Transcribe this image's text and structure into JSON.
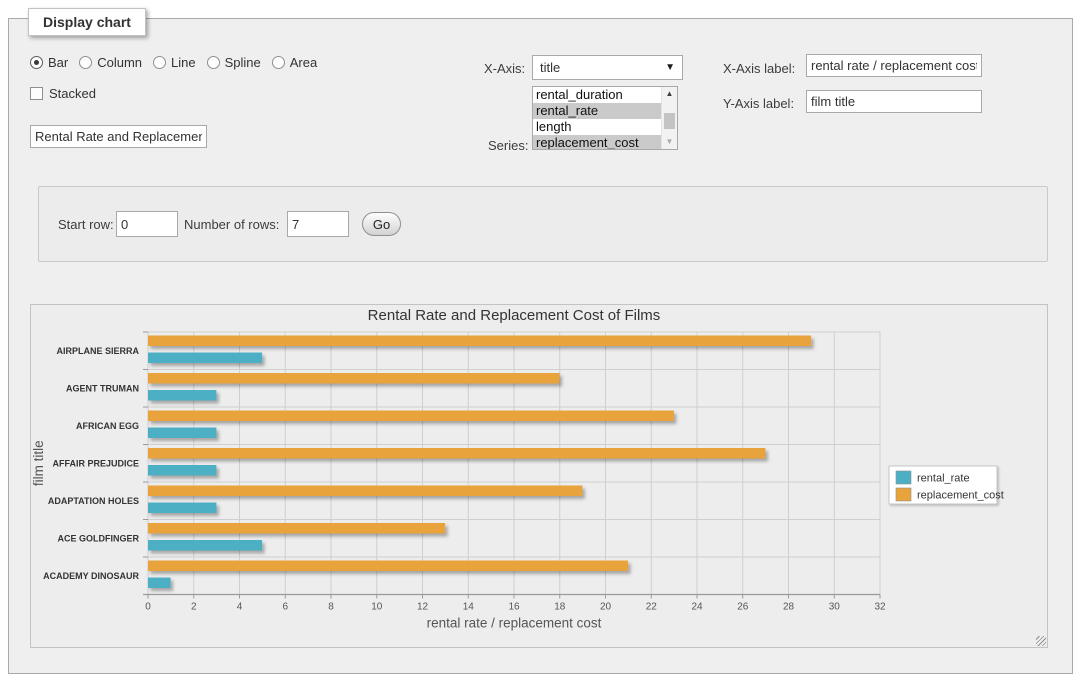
{
  "panel_title": "Display chart",
  "icons": {
    "dropdown_arrow": "▼",
    "scroll_up": "▲",
    "scroll_down": "▼"
  },
  "controls": {
    "chart_types": [
      "Bar",
      "Column",
      "Line",
      "Spline",
      "Area"
    ],
    "selected_chart_type": "Bar",
    "stacked_label": "Stacked",
    "stacked_checked": false,
    "chart_title_value": "Rental Rate and Replacement Cost of Films",
    "x_axis_label": "X-Axis:",
    "x_axis_selected": "title",
    "series_label": "Series:",
    "series_options": [
      {
        "name": "rental_duration",
        "selected": false
      },
      {
        "name": "rental_rate",
        "selected": true
      },
      {
        "name": "length",
        "selected": false
      },
      {
        "name": "replacement_cost",
        "selected": true
      }
    ],
    "x_axis_label_field": {
      "label": "X-Axis label:",
      "value": "rental rate / replacement cost"
    },
    "y_axis_label_field": {
      "label": "Y-Axis label:",
      "value": "film title"
    }
  },
  "row_controls": {
    "start_row_label": "Start row:",
    "start_row_value": "0",
    "num_rows_label": "Number of rows:",
    "num_rows_value": "7",
    "go_label": "Go"
  },
  "chart_data": {
    "type": "bar",
    "orientation": "horizontal",
    "title": "Rental Rate and Replacement Cost of Films",
    "categories": [
      "AIRPLANE SIERRA",
      "AGENT TRUMAN",
      "AFRICAN EGG",
      "AFFAIR PREJUDICE",
      "ADAPTATION HOLES",
      "ACE GOLDFINGER",
      "ACADEMY DINOSAUR"
    ],
    "series": [
      {
        "name": "rental_rate",
        "color": "#4DAFC4",
        "values": [
          4.99,
          2.99,
          2.99,
          2.99,
          2.99,
          4.99,
          0.99
        ]
      },
      {
        "name": "replacement_cost",
        "color": "#E8A33C",
        "values": [
          28.99,
          17.99,
          22.99,
          26.99,
          18.99,
          12.99,
          20.99
        ]
      }
    ],
    "xlabel": "rental rate / replacement cost",
    "ylabel": "film title",
    "xlim": [
      0,
      32
    ],
    "xticks": [
      0,
      2,
      4,
      6,
      8,
      10,
      12,
      14,
      16,
      18,
      20,
      22,
      24,
      26,
      28,
      30,
      32
    ],
    "grid": true,
    "legend_position": "right-middle"
  },
  "colors": {
    "accent_teal": "#4DAFC4",
    "accent_orange": "#E8A33C",
    "fieldset_bg": "#efefef",
    "chart_bg": "#ededed",
    "selected_option_bg": "#cacaca",
    "grid_line": "#cfcfcf",
    "axis_line": "#9a9a9a"
  }
}
